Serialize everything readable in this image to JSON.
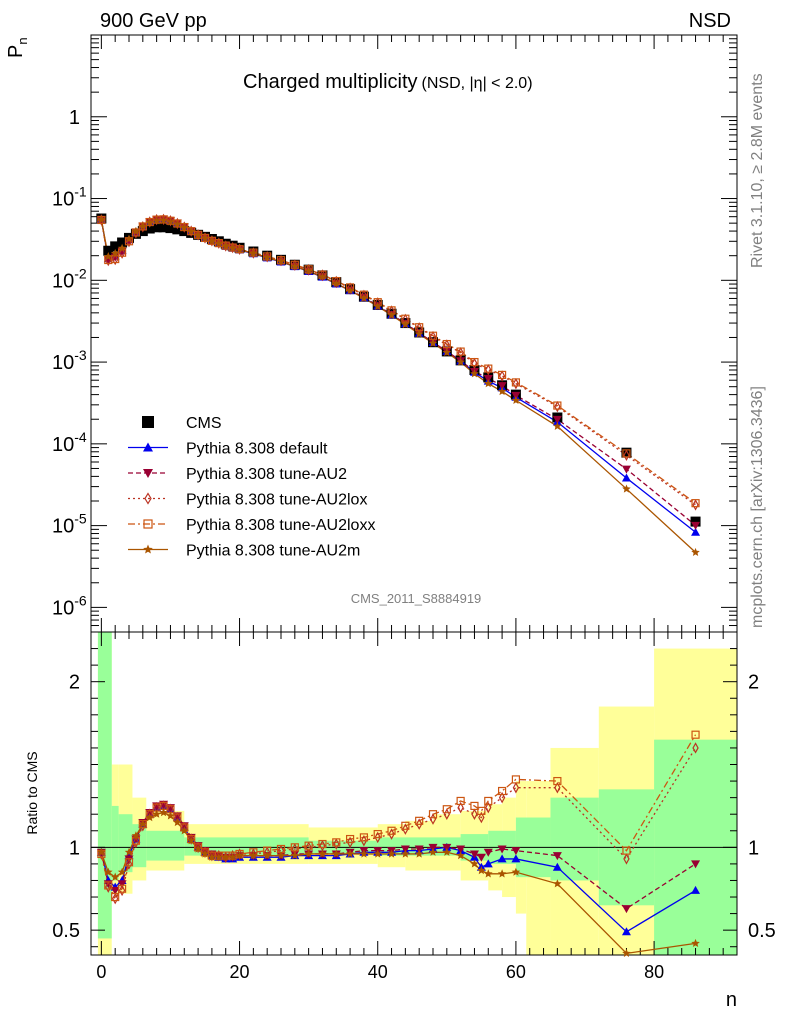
{
  "header": {
    "left": "900 GeV pp",
    "right": "NSD"
  },
  "side_labels": {
    "rivet": "Rivet 3.1.10, ≥ 2.8M events",
    "mcplots": "mcplots.cern.ch [arXiv:1306.3436]"
  },
  "chart_data": {
    "type": "scatter",
    "title": "Charged multiplicity",
    "subtitle": "(NSD, |η| < 2.0)",
    "analysis_id": "CMS_2011_S8884919",
    "xlabel": "n",
    "ylabel": "P",
    "ylabel_sub": "n",
    "ratio_ylabel": "Ratio to CMS",
    "xlim": [
      -1.5,
      92
    ],
    "ylim": [
      5e-07,
      10
    ],
    "yscale": "log",
    "ratio_ylim": [
      0.35,
      2.3
    ],
    "x_ticks": [
      "0",
      "20",
      "40",
      "60",
      "80"
    ],
    "y_ticks": [
      "1",
      "10^-1",
      "10^-2",
      "10^-3",
      "10^-4",
      "10^-5",
      "10^-6"
    ],
    "ratio_y_ticks": [
      "0.5",
      "1",
      "2"
    ],
    "legend_position": "lower-left",
    "data": {
      "name": "CMS",
      "color": "#000000",
      "points": [
        [
          0,
          0.057
        ],
        [
          1,
          0.023
        ],
        [
          2,
          0.026
        ],
        [
          3,
          0.029
        ],
        [
          4,
          0.033
        ],
        [
          5,
          0.037
        ],
        [
          6,
          0.04
        ],
        [
          7,
          0.043
        ],
        [
          8,
          0.0445
        ],
        [
          9,
          0.0445
        ],
        [
          10,
          0.0435
        ],
        [
          11,
          0.042
        ],
        [
          12,
          0.04
        ],
        [
          13,
          0.038
        ],
        [
          14,
          0.036
        ],
        [
          15,
          0.034
        ],
        [
          16,
          0.032
        ],
        [
          17,
          0.03
        ],
        [
          18,
          0.028
        ],
        [
          19,
          0.0265
        ],
        [
          20,
          0.025
        ],
        [
          22,
          0.0225
        ],
        [
          24,
          0.02
        ],
        [
          26,
          0.0178
        ],
        [
          28,
          0.0155
        ],
        [
          30,
          0.0135
        ],
        [
          32,
          0.0115
        ],
        [
          34,
          0.0095
        ],
        [
          36,
          0.0078
        ],
        [
          38,
          0.0063
        ],
        [
          40,
          0.005
        ],
        [
          42,
          0.0039
        ],
        [
          44,
          0.003
        ],
        [
          46,
          0.0023
        ],
        [
          48,
          0.00175
        ],
        [
          50,
          0.00135
        ],
        [
          52,
          0.00105
        ],
        [
          54,
          0.0008
        ],
        [
          56,
          0.00065
        ],
        [
          58,
          0.00052
        ],
        [
          60,
          0.0004
        ],
        [
          66,
          0.00021
        ],
        [
          76,
          7.8e-05
        ],
        [
          86,
          1.12e-05
        ]
      ],
      "band_inner": [
        [
          -0.5,
          1.5,
          0.45,
          2.3
        ],
        [
          1.5,
          2.5,
          0.8,
          1.25
        ],
        [
          2.5,
          4.5,
          0.85,
          1.2
        ],
        [
          4.5,
          6.5,
          0.88,
          1.14
        ],
        [
          6.5,
          12,
          0.92,
          1.1
        ],
        [
          12,
          30,
          0.95,
          1.06
        ],
        [
          30,
          40,
          0.96,
          1.04
        ],
        [
          40,
          48,
          0.95,
          1.06
        ],
        [
          48,
          52,
          0.95,
          1.06
        ],
        [
          52,
          56,
          0.92,
          1.08
        ],
        [
          56,
          60,
          0.9,
          1.1
        ],
        [
          60,
          65,
          0.82,
          1.18
        ],
        [
          65,
          72,
          0.8,
          1.3
        ],
        [
          72,
          80,
          0.65,
          1.35
        ],
        [
          80,
          92,
          0.35,
          1.65
        ]
      ],
      "band_outer": [
        [
          -0.5,
          1.5,
          0.35,
          2.3
        ],
        [
          1.5,
          2.5,
          0.72,
          1.5
        ],
        [
          2.5,
          4.5,
          0.72,
          1.5
        ],
        [
          4.5,
          6.5,
          0.8,
          1.3
        ],
        [
          6.5,
          12,
          0.86,
          1.22
        ],
        [
          12,
          30,
          0.9,
          1.14
        ],
        [
          30,
          40,
          0.9,
          1.12
        ],
        [
          40,
          44,
          0.88,
          1.14
        ],
        [
          44,
          48,
          0.86,
          1.16
        ],
        [
          48,
          52,
          0.86,
          1.2
        ],
        [
          52,
          56,
          0.8,
          1.22
        ],
        [
          56,
          58,
          0.74,
          1.26
        ],
        [
          58,
          60,
          0.7,
          1.3
        ],
        [
          60,
          61.5,
          0.6,
          1.4
        ],
        [
          61.5,
          65,
          0.35,
          1.4
        ],
        [
          65,
          72,
          0.35,
          1.6
        ],
        [
          72,
          80,
          0.35,
          1.85
        ],
        [
          80,
          92,
          0.35,
          2.2
        ]
      ],
      "inner_color": "#99ff99",
      "outer_color": "#ffff99"
    },
    "series": [
      {
        "name": "Pythia 8.308 default",
        "color": "#0000ee",
        "marker": "triangle-up",
        "line_style": "solid",
        "ratio": [
          [
            0,
            0.97
          ],
          [
            1,
            0.8
          ],
          [
            2,
            0.76
          ],
          [
            3,
            0.8
          ],
          [
            4,
            0.95
          ],
          [
            5,
            1.05
          ],
          [
            6,
            1.14
          ],
          [
            7,
            1.2
          ],
          [
            8,
            1.24
          ],
          [
            9,
            1.25
          ],
          [
            10,
            1.23
          ],
          [
            11,
            1.18
          ],
          [
            12,
            1.12
          ],
          [
            13,
            1.05
          ],
          [
            14,
            1.0
          ],
          [
            15,
            0.97
          ],
          [
            16,
            0.95
          ],
          [
            17,
            0.94
          ],
          [
            18,
            0.93
          ],
          [
            19,
            0.93
          ],
          [
            20,
            0.94
          ],
          [
            22,
            0.94
          ],
          [
            24,
            0.94
          ],
          [
            26,
            0.94
          ],
          [
            28,
            0.95
          ],
          [
            30,
            0.95
          ],
          [
            32,
            0.95
          ],
          [
            34,
            0.95
          ],
          [
            36,
            0.96
          ],
          [
            38,
            0.97
          ],
          [
            40,
            0.97
          ],
          [
            42,
            0.97
          ],
          [
            44,
            0.98
          ],
          [
            46,
            0.98
          ],
          [
            48,
            0.99
          ],
          [
            50,
            1.0
          ],
          [
            52,
            0.98
          ],
          [
            54,
            0.94
          ],
          [
            55,
            0.88
          ],
          [
            56,
            0.9
          ],
          [
            58,
            0.93
          ],
          [
            60,
            0.93
          ],
          [
            66,
            0.88
          ],
          [
            76,
            0.49
          ],
          [
            86,
            0.74
          ]
        ]
      },
      {
        "name": "Pythia 8.308 tune-AU2",
        "color": "#990033",
        "marker": "triangle-down",
        "line_style": "dashed",
        "ratio": [
          [
            0,
            0.97
          ],
          [
            1,
            0.78
          ],
          [
            2,
            0.74
          ],
          [
            3,
            0.78
          ],
          [
            4,
            0.93
          ],
          [
            5,
            1.05
          ],
          [
            6,
            1.15
          ],
          [
            7,
            1.21
          ],
          [
            8,
            1.25
          ],
          [
            9,
            1.26
          ],
          [
            10,
            1.24
          ],
          [
            11,
            1.19
          ],
          [
            12,
            1.13
          ],
          [
            13,
            1.06
          ],
          [
            14,
            1.01
          ],
          [
            15,
            0.98
          ],
          [
            16,
            0.96
          ],
          [
            17,
            0.95
          ],
          [
            18,
            0.94
          ],
          [
            19,
            0.94
          ],
          [
            20,
            0.95
          ],
          [
            22,
            0.95
          ],
          [
            24,
            0.95
          ],
          [
            26,
            0.95
          ],
          [
            28,
            0.96
          ],
          [
            30,
            0.96
          ],
          [
            32,
            0.96
          ],
          [
            34,
            0.96
          ],
          [
            36,
            0.97
          ],
          [
            38,
            0.98
          ],
          [
            40,
            0.98
          ],
          [
            42,
            0.98
          ],
          [
            44,
            0.99
          ],
          [
            46,
            0.99
          ],
          [
            48,
            1.0
          ],
          [
            50,
            1.0
          ],
          [
            52,
            0.99
          ],
          [
            54,
            0.96
          ],
          [
            55,
            0.94
          ],
          [
            56,
            0.97
          ],
          [
            58,
            0.99
          ],
          [
            60,
            0.98
          ],
          [
            66,
            0.95
          ],
          [
            76,
            0.63
          ],
          [
            86,
            0.9
          ]
        ]
      },
      {
        "name": "Pythia 8.308 tune-AU2lox",
        "color": "#bb3322",
        "marker": "diamond-open",
        "line_style": "dotted",
        "ratio": [
          [
            0,
            0.96
          ],
          [
            1,
            0.76
          ],
          [
            2,
            0.69
          ],
          [
            3,
            0.74
          ],
          [
            4,
            0.9
          ],
          [
            5,
            1.03
          ],
          [
            6,
            1.13
          ],
          [
            7,
            1.2
          ],
          [
            8,
            1.24
          ],
          [
            9,
            1.25
          ],
          [
            10,
            1.23
          ],
          [
            11,
            1.18
          ],
          [
            12,
            1.12
          ],
          [
            13,
            1.05
          ],
          [
            14,
            1.0
          ],
          [
            15,
            0.97
          ],
          [
            16,
            0.95
          ],
          [
            17,
            0.95
          ],
          [
            18,
            0.94
          ],
          [
            19,
            0.95
          ],
          [
            20,
            0.96
          ],
          [
            22,
            0.96
          ],
          [
            24,
            0.97
          ],
          [
            26,
            0.98
          ],
          [
            28,
            0.99
          ],
          [
            30,
            1.0
          ],
          [
            32,
            1.01
          ],
          [
            34,
            1.02
          ],
          [
            36,
            1.03
          ],
          [
            38,
            1.04
          ],
          [
            40,
            1.06
          ],
          [
            42,
            1.08
          ],
          [
            44,
            1.11
          ],
          [
            46,
            1.14
          ],
          [
            48,
            1.17
          ],
          [
            50,
            1.2
          ],
          [
            52,
            1.24
          ],
          [
            54,
            1.2
          ],
          [
            55,
            1.18
          ],
          [
            56,
            1.24
          ],
          [
            58,
            1.3
          ],
          [
            60,
            1.36
          ],
          [
            66,
            1.36
          ],
          [
            76,
            0.93
          ],
          [
            86,
            1.6
          ]
        ]
      },
      {
        "name": "Pythia 8.308 tune-AU2loxx",
        "color": "#cc5511",
        "marker": "square-open",
        "line_style": "dashdot",
        "ratio": [
          [
            0,
            0.96
          ],
          [
            1,
            0.77
          ],
          [
            2,
            0.7
          ],
          [
            3,
            0.75
          ],
          [
            4,
            0.91
          ],
          [
            5,
            1.04
          ],
          [
            6,
            1.14
          ],
          [
            7,
            1.2
          ],
          [
            8,
            1.24
          ],
          [
            9,
            1.25
          ],
          [
            10,
            1.23
          ],
          [
            11,
            1.18
          ],
          [
            12,
            1.12
          ],
          [
            13,
            1.05
          ],
          [
            14,
            1.0
          ],
          [
            15,
            0.97
          ],
          [
            16,
            0.95
          ],
          [
            17,
            0.95
          ],
          [
            18,
            0.95
          ],
          [
            19,
            0.95
          ],
          [
            20,
            0.96
          ],
          [
            22,
            0.97
          ],
          [
            24,
            0.98
          ],
          [
            26,
            0.99
          ],
          [
            28,
            1.0
          ],
          [
            30,
            1.01
          ],
          [
            32,
            1.02
          ],
          [
            34,
            1.03
          ],
          [
            36,
            1.05
          ],
          [
            38,
            1.06
          ],
          [
            40,
            1.08
          ],
          [
            42,
            1.1
          ],
          [
            44,
            1.13
          ],
          [
            46,
            1.16
          ],
          [
            48,
            1.2
          ],
          [
            50,
            1.23
          ],
          [
            52,
            1.28
          ],
          [
            54,
            1.25
          ],
          [
            55,
            1.22
          ],
          [
            56,
            1.28
          ],
          [
            58,
            1.34
          ],
          [
            60,
            1.41
          ],
          [
            66,
            1.4
          ],
          [
            76,
            0.98
          ],
          [
            86,
            1.68
          ]
        ]
      },
      {
        "name": "Pythia 8.308 tune-AU2m",
        "color": "#aa5500",
        "marker": "star",
        "line_style": "solid",
        "ratio": [
          [
            0,
            0.97
          ],
          [
            1,
            0.85
          ],
          [
            2,
            0.82
          ],
          [
            3,
            0.85
          ],
          [
            4,
            0.97
          ],
          [
            5,
            1.07
          ],
          [
            6,
            1.14
          ],
          [
            7,
            1.18
          ],
          [
            8,
            1.2
          ],
          [
            9,
            1.21
          ],
          [
            10,
            1.19
          ],
          [
            11,
            1.15
          ],
          [
            12,
            1.1
          ],
          [
            13,
            1.04
          ],
          [
            14,
            0.99
          ],
          [
            15,
            0.96
          ],
          [
            16,
            0.94
          ],
          [
            17,
            0.94
          ],
          [
            18,
            0.94
          ],
          [
            19,
            0.94
          ],
          [
            20,
            0.95
          ],
          [
            22,
            0.95
          ],
          [
            24,
            0.95
          ],
          [
            26,
            0.95
          ],
          [
            28,
            0.95
          ],
          [
            30,
            0.96
          ],
          [
            32,
            0.96
          ],
          [
            34,
            0.96
          ],
          [
            36,
            0.96
          ],
          [
            38,
            0.96
          ],
          [
            40,
            0.96
          ],
          [
            42,
            0.96
          ],
          [
            44,
            0.96
          ],
          [
            46,
            0.96
          ],
          [
            48,
            0.97
          ],
          [
            50,
            0.97
          ],
          [
            52,
            0.95
          ],
          [
            54,
            0.9
          ],
          [
            55,
            0.86
          ],
          [
            56,
            0.84
          ],
          [
            58,
            0.84
          ],
          [
            60,
            0.85
          ],
          [
            66,
            0.78
          ],
          [
            76,
            0.36
          ],
          [
            86,
            0.42
          ]
        ]
      }
    ]
  }
}
